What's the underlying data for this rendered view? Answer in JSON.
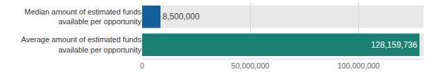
{
  "chart_data": {
    "type": "bar",
    "orientation": "horizontal",
    "categories": [
      "Median amount of estimated funds available per opportunity",
      "Average amount of estimated funds available per opportunity"
    ],
    "values": [
      8500000,
      128159736
    ],
    "value_labels": [
      "8,500,000",
      "128,159,736"
    ],
    "colors": [
      "#15609a",
      "#1b8074"
    ],
    "xlim": [
      0,
      130000000
    ],
    "xticks": [
      0,
      {
        "value": 50000000,
        "label": "50,000,000"
      },
      {
        "value": 100000000,
        "label": "100,000,000"
      }
    ],
    "grid": true,
    "data_labels": true
  }
}
